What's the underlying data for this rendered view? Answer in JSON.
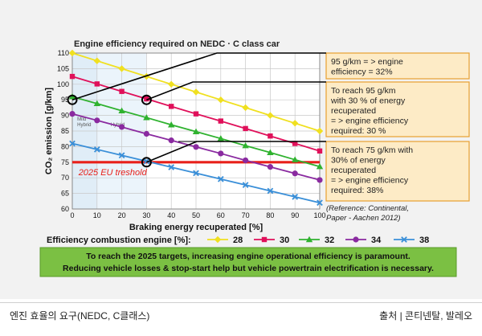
{
  "chart_data": {
    "type": "line",
    "title": "Engine efficiency required on NEDC · C class car",
    "xlabel": "Braking energy recuperated [%]",
    "ylabel": "CO₂ emission [g/km]",
    "xlim": [
      0,
      100
    ],
    "ylim": [
      60,
      110
    ],
    "xticks": [
      0,
      10,
      20,
      30,
      40,
      50,
      60,
      70,
      80,
      90,
      100
    ],
    "yticks": [
      60,
      65,
      70,
      75,
      80,
      85,
      90,
      95,
      100,
      105,
      110
    ],
    "grid": true,
    "legend_title": "Efficiency combustion engine [%]:",
    "legend_position": "bottom",
    "series": [
      {
        "name": "28",
        "color": "#f0e020",
        "marker": "diamond",
        "x": [
          0,
          10,
          20,
          30,
          40,
          50,
          60,
          70,
          80,
          90,
          100
        ],
        "y": [
          110,
          107.5,
          105,
          102.5,
          100,
          97.5,
          95,
          92.5,
          90,
          87.5,
          85
        ]
      },
      {
        "name": "30",
        "color": "#e0105a",
        "marker": "square",
        "x": [
          0,
          10,
          20,
          30,
          40,
          50,
          60,
          70,
          80,
          90,
          100
        ],
        "y": [
          102.5,
          100.1,
          97.7,
          95.3,
          92.9,
          90.5,
          88.2,
          85.8,
          83.4,
          81,
          78.6
        ]
      },
      {
        "name": "32",
        "color": "#2fb22f",
        "marker": "triangle",
        "x": [
          0,
          10,
          20,
          30,
          40,
          50,
          60,
          70,
          80,
          90,
          100
        ],
        "y": [
          96,
          93.8,
          91.5,
          89.3,
          87,
          84.8,
          82.6,
          80.3,
          78.1,
          75.8,
          73.6
        ]
      },
      {
        "name": "34",
        "color": "#8a2aa0",
        "marker": "circle",
        "x": [
          0,
          10,
          20,
          30,
          40,
          50,
          60,
          70,
          80,
          90,
          100
        ],
        "y": [
          90.5,
          88.4,
          86.3,
          84.1,
          82,
          79.9,
          77.8,
          75.6,
          73.5,
          71.4,
          69.3
        ]
      },
      {
        "name": "38",
        "color": "#3a8fd8",
        "marker": "x",
        "x": [
          0,
          10,
          20,
          30,
          40,
          50,
          60,
          70,
          80,
          90,
          100
        ],
        "y": [
          81,
          79.1,
          77.2,
          75.3,
          73.4,
          71.5,
          69.6,
          67.7,
          65.8,
          63.9,
          62
        ]
      }
    ],
    "threshold": {
      "y": 75,
      "label": "2025 EU treshold",
      "color": "#e8201a"
    },
    "shaded_bands": [
      {
        "x": [
          0,
          10
        ],
        "label": "Mild Hybrid"
      },
      {
        "x": [
          10,
          30
        ],
        "label": "Hybrid"
      }
    ],
    "callout_points": [
      {
        "x": 0,
        "y": 95
      },
      {
        "x": 30,
        "y": 95
      },
      {
        "x": 30,
        "y": 75
      }
    ],
    "annotations": [
      "95 g/km = > engine efficiency = 32%",
      "To reach 95 g/km with 30 % of energy recuperated = > engine efficiency required: 30 %",
      "To reach 75 g/km with 30% of energy recuperated = > engine efficiency required: 38%"
    ],
    "reference": "(Reference: Continental, Paper  - Aachen 2012)",
    "note": "To reach the 2025 targets, increasing engine operational efficiency is paramount. Reducing vehicle losses & stop-start help but vehicle powertrain electrification is necessary."
  },
  "caption": {
    "left": "엔진 효율의 요구(NEDC, C클래스)",
    "right": "출처 |   콘티넨탈, 발레오"
  }
}
